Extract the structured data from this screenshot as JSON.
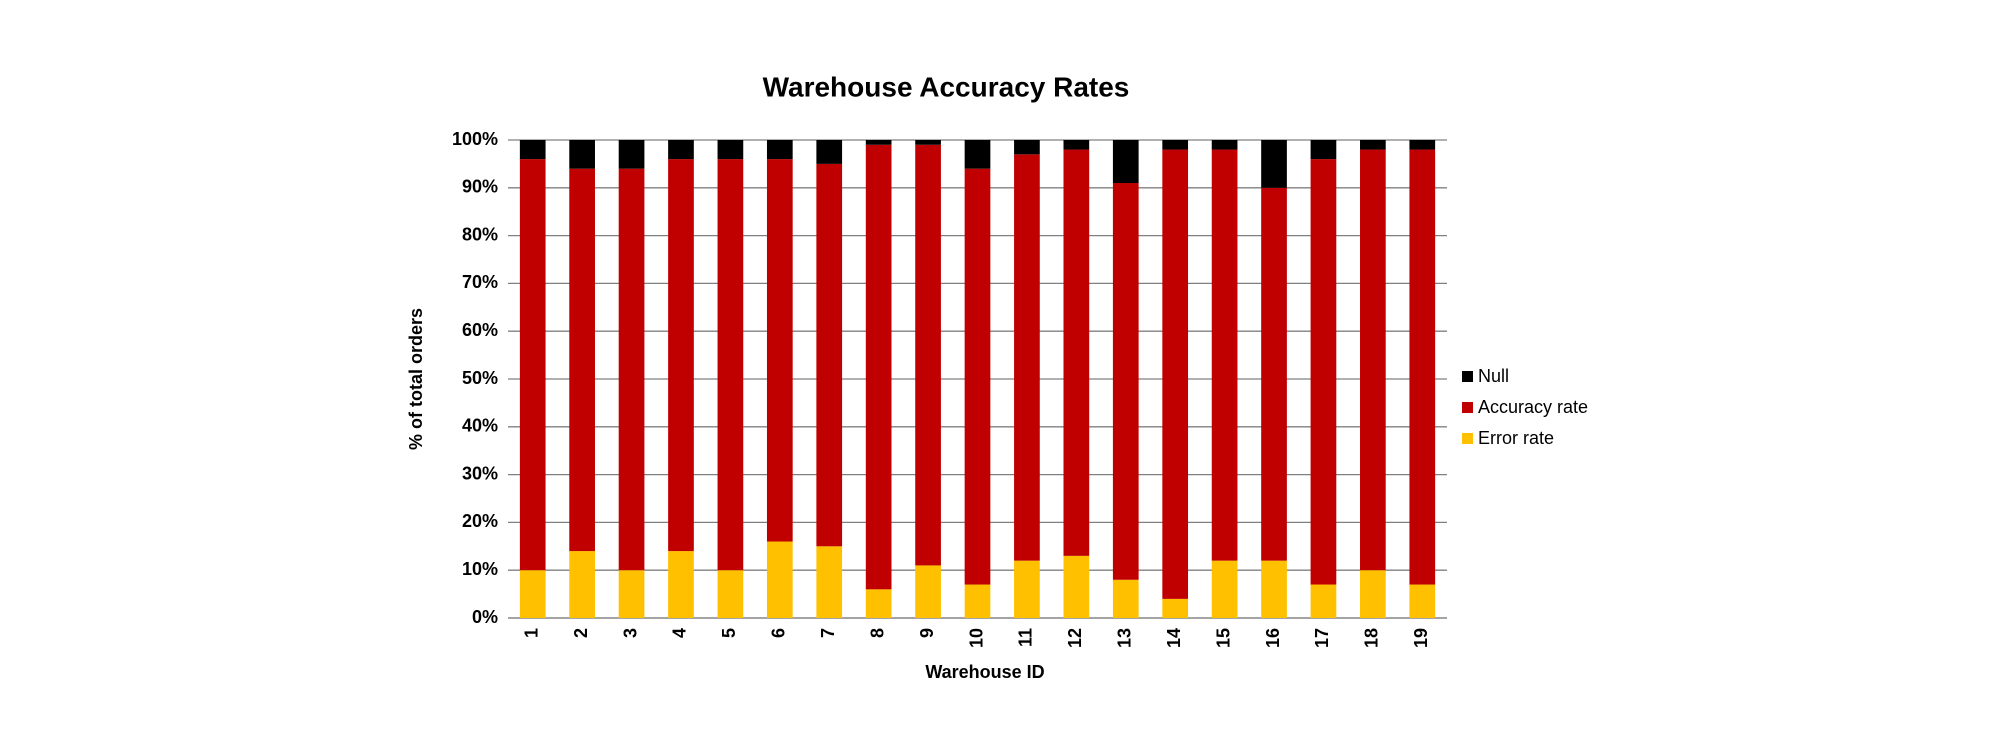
{
  "chart_data": {
    "type": "stacked_bar",
    "title": "Warehouse Accuracy Rates",
    "x_label": "Warehouse ID",
    "y_label": "% of total orders",
    "categories": [
      "1",
      "2",
      "3",
      "4",
      "5",
      "6",
      "7",
      "8",
      "9",
      "10",
      "11",
      "12",
      "13",
      "14",
      "15",
      "16",
      "17",
      "18",
      "19"
    ],
    "series": [
      {
        "name": "Error rate",
        "color": "#ffc000",
        "values": [
          10,
          14,
          10,
          14,
          10,
          16,
          15,
          6,
          11,
          7,
          12,
          13,
          8,
          4,
          12,
          12,
          7,
          10,
          7
        ]
      },
      {
        "name": "Accuracy rate",
        "color": "#c00000",
        "values": [
          86,
          80,
          84,
          82,
          86,
          80,
          80,
          93,
          88,
          87,
          85,
          85,
          83,
          94,
          86,
          78,
          89,
          88,
          91
        ]
      },
      {
        "name": "Null",
        "color": "#000000",
        "values": [
          4,
          6,
          6,
          4,
          4,
          4,
          5,
          1,
          1,
          6,
          3,
          2,
          9,
          2,
          2,
          10,
          4,
          2,
          2
        ]
      }
    ],
    "ylim": [
      0,
      100
    ],
    "yticks": [
      {
        "value": 0,
        "label": "0%"
      },
      {
        "value": 10,
        "label": "10%"
      },
      {
        "value": 20,
        "label": "20%"
      },
      {
        "value": 30,
        "label": "30%"
      },
      {
        "value": 40,
        "label": "40%"
      },
      {
        "value": 50,
        "label": "50%"
      },
      {
        "value": 60,
        "label": "60%"
      },
      {
        "value": 70,
        "label": "70%"
      },
      {
        "value": 80,
        "label": "80%"
      },
      {
        "value": 90,
        "label": "90%"
      },
      {
        "value": 100,
        "label": "100%"
      }
    ],
    "grid": true,
    "legend": "right"
  }
}
